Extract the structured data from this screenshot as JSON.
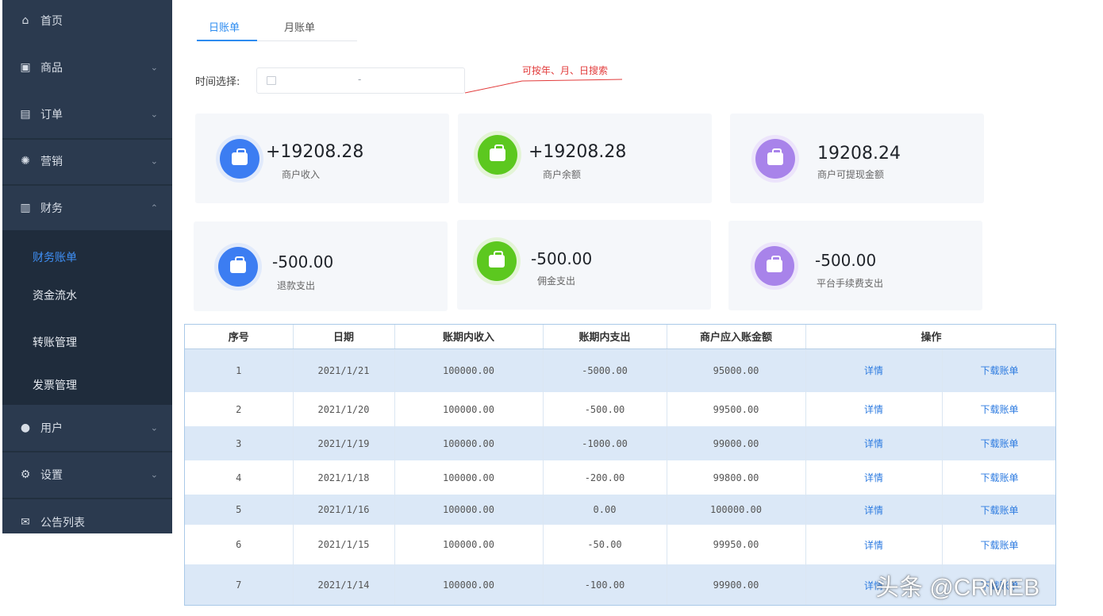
{
  "sidebar": {
    "items": [
      {
        "label": "首页",
        "icon": "home-icon",
        "chevron": ""
      },
      {
        "label": "商品",
        "icon": "bag-icon",
        "chevron": "⌄"
      },
      {
        "label": "订单",
        "icon": "order-icon",
        "chevron": "⌄"
      },
      {
        "label": "营销",
        "icon": "marketing-icon",
        "chevron": "⌄"
      },
      {
        "label": "财务",
        "icon": "chart-icon",
        "chevron": "⌃"
      },
      {
        "label": "用户",
        "icon": "user-icon",
        "chevron": "⌄"
      },
      {
        "label": "设置",
        "icon": "gear-icon",
        "chevron": "⌄"
      },
      {
        "label": "公告列表",
        "icon": "mail-icon",
        "chevron": ""
      }
    ],
    "submenu": [
      "财务账单",
      "资金流水",
      "转账管理",
      "发票管理"
    ]
  },
  "tabs": [
    "日账单",
    "月账单"
  ],
  "filter": {
    "label": "时间选择:",
    "separator": "-"
  },
  "annotation": "可按年、月、日搜索",
  "cards": [
    {
      "amount": "+19208.28",
      "label": "商户收入",
      "color": "#3c7df2",
      "icon": "shopping-bag-icon"
    },
    {
      "amount": "+19208.28",
      "label": "商户余额",
      "color": "#5cc81f",
      "icon": "briefcase-icon"
    },
    {
      "amount": "19208.24",
      "label": "商户可提现金额",
      "color": "#a883ea",
      "icon": "wallet-icon"
    },
    {
      "amount": "-500.00",
      "label": "退款支出",
      "color": "#3c7df2",
      "icon": "shopping-bag-icon"
    },
    {
      "amount": "-500.00",
      "label": "佣金支出",
      "color": "#5cc81f",
      "icon": "briefcase-icon"
    },
    {
      "amount": "-500.00",
      "label": "平台手续费支出",
      "color": "#a883ea",
      "icon": "wallet-icon"
    }
  ],
  "table": {
    "headers": [
      "序号",
      "日期",
      "账期内收入",
      "账期内支出",
      "商户应入账金额",
      "操作"
    ],
    "rows": [
      {
        "no": "1",
        "date": "2021/1/21",
        "income": "100000.00",
        "expense": "-5000.00",
        "amount": "95000.00",
        "detail": "详情",
        "download": "下载账单"
      },
      {
        "no": "2",
        "date": "2021/1/20",
        "income": "100000.00",
        "expense": "-500.00",
        "amount": "99500.00",
        "detail": "详情",
        "download": "下载账单"
      },
      {
        "no": "3",
        "date": "2021/1/19",
        "income": "100000.00",
        "expense": "-1000.00",
        "amount": "99000.00",
        "detail": "详情",
        "download": "下载账单"
      },
      {
        "no": "4",
        "date": "2021/1/18",
        "income": "100000.00",
        "expense": "-200.00",
        "amount": "99800.00",
        "detail": "详情",
        "download": "下载账单"
      },
      {
        "no": "5",
        "date": "2021/1/16",
        "income": "100000.00",
        "expense": "0.00",
        "amount": "100000.00",
        "detail": "详情",
        "download": "下载账单"
      },
      {
        "no": "6",
        "date": "2021/1/15",
        "income": "100000.00",
        "expense": "-50.00",
        "amount": "99950.00",
        "detail": "详情",
        "download": "下载账单"
      },
      {
        "no": "7",
        "date": "2021/1/14",
        "income": "100000.00",
        "expense": "-100.00",
        "amount": "99900.00",
        "detail": "详情",
        "download": "下载账单"
      }
    ]
  },
  "watermark": "头条 @CRMEB"
}
